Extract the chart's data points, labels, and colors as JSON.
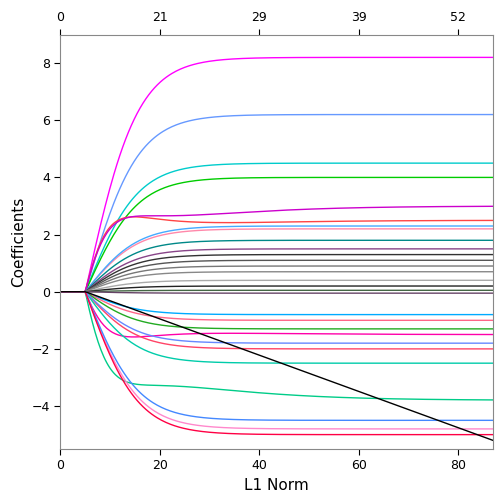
{
  "xlabel_bottom": "L1 Norm",
  "ylabel": "Coefficients",
  "xlim": [
    0,
    87
  ],
  "ylim": [
    -5.5,
    9.0
  ],
  "yticks": [
    -4,
    -2,
    0,
    2,
    4,
    6,
    8
  ],
  "xticks_bottom": [
    0,
    20,
    40,
    60,
    80
  ],
  "top_tick_labels": [
    0,
    21,
    29,
    39,
    52
  ],
  "top_tick_positions": [
    0,
    20,
    40,
    60,
    80
  ],
  "background_color": "#ffffff",
  "line_width": 1.0,
  "seed": 42
}
